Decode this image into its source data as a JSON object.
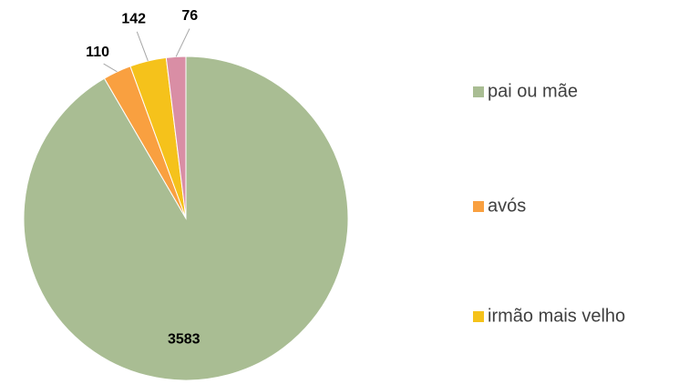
{
  "chart_data": {
    "type": "pie",
    "categories": [
      "pai ou mãe",
      "avós",
      "irmão mais velho",
      null
    ],
    "values": [
      3583,
      110,
      142,
      76
    ],
    "colors": [
      "#a9bd93",
      "#f9a040",
      "#f5c21b",
      "#d98ea5"
    ],
    "legend": "right"
  }
}
